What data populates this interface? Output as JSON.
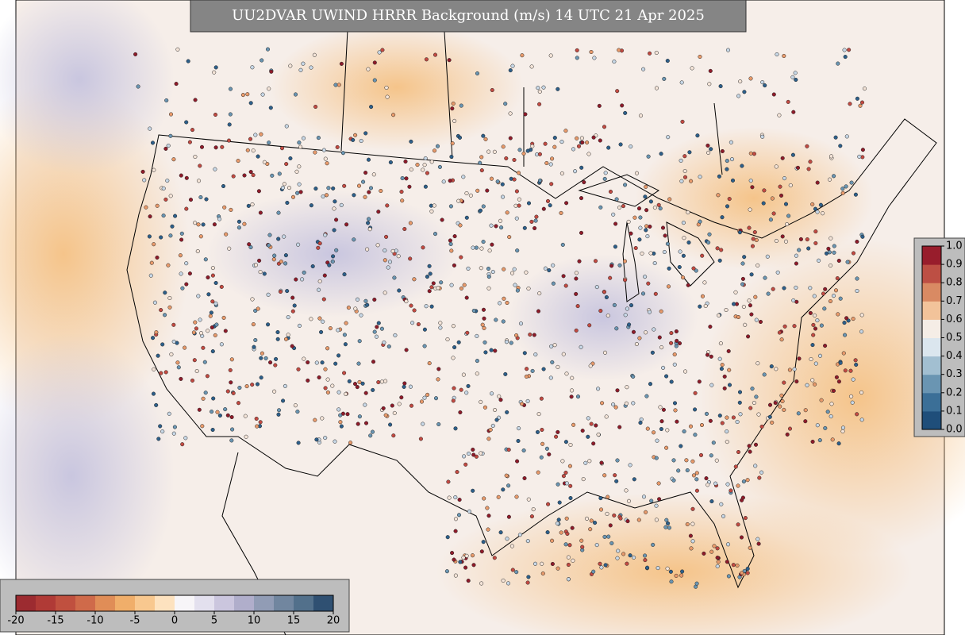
{
  "title": "UU2DVAR UWIND HRRR Background (m/s) 14 UTC 21 Apr 2025",
  "wind_colorbar": {
    "lim": [
      -20,
      20
    ],
    "ticks": [
      -20,
      -15,
      -10,
      -5,
      0,
      5,
      10,
      15,
      20
    ],
    "colors": [
      "#9c2b30",
      "#b03a36",
      "#c0503f",
      "#cf6a4a",
      "#e08d57",
      "#f0ae6a",
      "#f8c88f",
      "#fde2bf",
      "#f7f5f8",
      "#e3e0ee",
      "#cbc6de",
      "#b0aecb",
      "#919cb5",
      "#71869f",
      "#52708b",
      "#2f5072"
    ]
  },
  "obs_colorbar": {
    "lim": [
      0,
      1
    ],
    "ticks": [
      {
        "value": 0,
        "label": "0.0"
      },
      {
        "value": 0.1,
        "label": "0.1"
      },
      {
        "value": 0.2,
        "label": "0.2"
      },
      {
        "value": 0.3,
        "label": "0.3"
      },
      {
        "value": 0.4,
        "label": "0.4"
      },
      {
        "value": 0.5,
        "label": "0.5"
      },
      {
        "value": 0.6,
        "label": "0.6"
      },
      {
        "value": 0.7,
        "label": "0.7"
      },
      {
        "value": 0.8,
        "label": "0.8"
      },
      {
        "value": 0.9,
        "label": "0.9"
      },
      {
        "value": 1,
        "label": "1.0"
      }
    ],
    "colors": [
      "#1f4e7a",
      "#3b6f97",
      "#6a95b2",
      "#a2bfd1",
      "#dbe6ee",
      "#f5ede6",
      "#f2c39a",
      "#d98a63",
      "#bd4f44",
      "#981d2c"
    ]
  }
}
